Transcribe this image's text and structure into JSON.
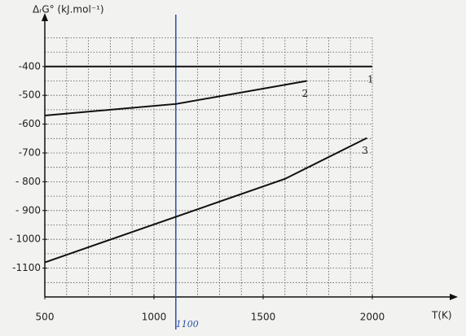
{
  "chart_data": {
    "type": "line",
    "y_label": "ΔᵣG° (kJ.mol⁻¹)",
    "x_label": "T(K)",
    "xlim": [
      500,
      2000
    ],
    "xticks": [
      500,
      1000,
      1500,
      2000
    ],
    "ylim": [
      -1200,
      -200
    ],
    "yticks": [
      -400,
      -500,
      -600,
      -700,
      {
        "value": -800,
        "label": "- 800"
      },
      {
        "value": -900,
        "label": "- 900"
      },
      {
        "value": -1000,
        "label": "- 1000"
      },
      {
        "value": -1100,
        "label": "-1100"
      }
    ],
    "grid": true,
    "grid_x_step": 100,
    "grid_y_step": 50,
    "series": [
      {
        "name": "1",
        "color": "#111111",
        "x": [
          500,
          2000
        ],
        "values": [
          -400,
          -400
        ]
      },
      {
        "name": "2",
        "color": "#111111",
        "x": [
          500,
          1100,
          1700
        ],
        "values": [
          -570,
          -530,
          -450
        ]
      },
      {
        "name": "3",
        "color": "#111111",
        "x": [
          500,
          1600,
          1975
        ],
        "values": [
          -1080,
          -790,
          -648
        ]
      }
    ],
    "annotation": {
      "text": "1100",
      "x": 1100,
      "color": "#2a4fa8"
    }
  }
}
